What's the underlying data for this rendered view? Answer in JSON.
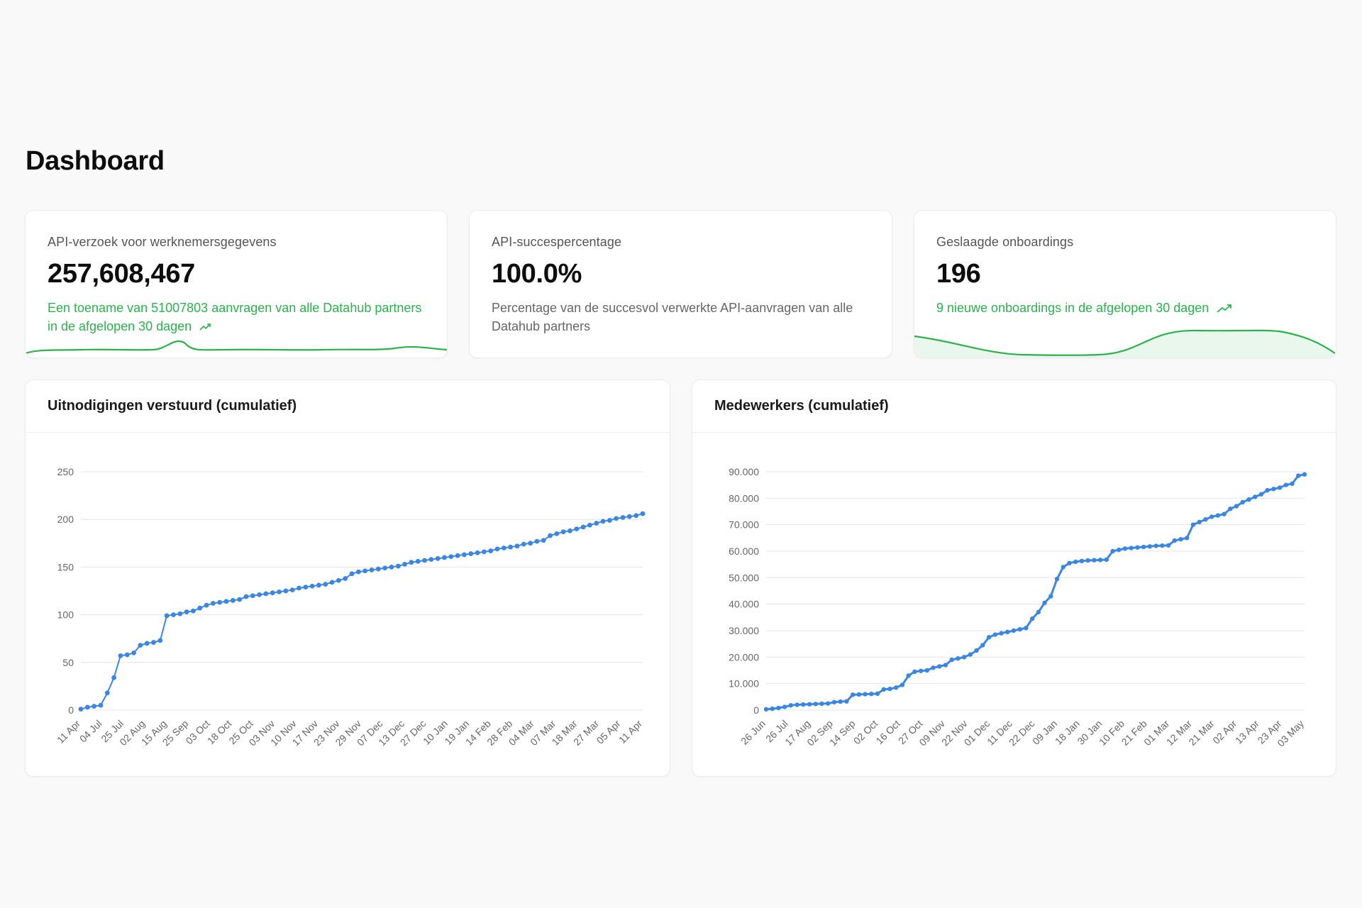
{
  "page": {
    "title": "Dashboard"
  },
  "stats": {
    "requests": {
      "title": "API-verzoek voor werknemersgegevens",
      "value": "257,608,467",
      "desc": "Een toename van 51007803 aanvragen van alle Datahub partners in de afgelopen 30 dagen",
      "trend_icon": "trending-up-icon"
    },
    "success": {
      "title": "API-succespercentage",
      "value": "100.0%",
      "desc": "Percentage van de succesvol verwerkte API-aanvragen van alle Datahub partners"
    },
    "onboardings": {
      "title": "Geslaagde onboardings",
      "value": "196",
      "desc": "9 nieuwe onboardings in de afgelopen 30 dagen",
      "trend_icon": "trending-up-icon"
    }
  },
  "colors": {
    "green": "#2bb24c",
    "line": "#3b86e0",
    "grid": "#e4e4e4"
  },
  "charts": {
    "invites": {
      "title": "Uitnodigingen verstuurd (cumulatief)"
    },
    "employees": {
      "title": "Medewerkers (cumulatief)"
    }
  },
  "chart_data": [
    {
      "type": "line",
      "title": "Uitnodigingen verstuurd (cumulatief)",
      "ylim": [
        0,
        250
      ],
      "yticks": [
        0,
        50,
        100,
        150,
        200,
        250
      ],
      "ytick_labels": [
        "0",
        "50",
        "100",
        "150",
        "200",
        "250"
      ],
      "xtick_labels": [
        "11 Apr",
        "04 Jul",
        "25 Jul",
        "02 Aug",
        "15 Aug",
        "25 Sep",
        "03 Oct",
        "18 Oct",
        "25 Oct",
        "03 Nov",
        "10 Nov",
        "17 Nov",
        "23 Nov",
        "29 Nov",
        "07 Dec",
        "13 Dec",
        "27 Dec",
        "10 Jan",
        "19 Jan",
        "14 Feb",
        "28 Feb",
        "04 Mar",
        "07 Mar",
        "18 Mar",
        "27 Mar",
        "05 Apr",
        "11 Apr"
      ],
      "values": [
        1,
        3,
        4,
        5,
        18,
        34,
        57,
        58,
        60,
        68,
        70,
        71,
        73,
        99,
        100,
        101,
        103,
        104,
        107,
        110,
        112,
        113,
        114,
        115,
        116,
        119,
        120,
        121,
        122,
        123,
        124,
        125,
        126,
        128,
        129,
        130,
        131,
        132,
        134,
        136,
        138,
        143,
        145,
        146,
        147,
        148,
        149,
        150,
        151,
        153,
        155,
        156,
        157,
        158,
        159,
        160,
        161,
        162,
        163,
        164,
        165,
        166,
        167,
        169,
        170,
        171,
        172,
        174,
        175,
        177,
        178,
        183,
        185,
        187,
        188,
        190,
        192,
        194,
        196,
        198,
        199,
        201,
        202,
        203,
        204,
        206
      ]
    },
    {
      "type": "line",
      "title": "Medewerkers (cumulatief)",
      "ylim": [
        0,
        90000
      ],
      "yticks": [
        0,
        10000,
        20000,
        30000,
        40000,
        50000,
        60000,
        70000,
        80000,
        90000
      ],
      "ytick_labels": [
        "0",
        "10.000",
        "20.000",
        "30.000",
        "40.000",
        "50.000",
        "60.000",
        "70.000",
        "80.000",
        "90.000"
      ],
      "xtick_labels": [
        "26 Jun",
        "26 Jul",
        "17 Aug",
        "02 Sep",
        "14 Sep",
        "02 Oct",
        "16 Oct",
        "27 Oct",
        "09 Nov",
        "22 Nov",
        "01 Dec",
        "11 Dec",
        "22 Dec",
        "09 Jan",
        "18 Jan",
        "30 Jan",
        "10 Feb",
        "21 Feb",
        "01 Mar",
        "12 Mar",
        "21 Mar",
        "02 Apr",
        "13 Apr",
        "23 Apr",
        "03 May"
      ],
      "values": [
        300,
        500,
        800,
        1200,
        1800,
        2000,
        2100,
        2200,
        2300,
        2400,
        2500,
        3000,
        3200,
        3300,
        5800,
        5900,
        6000,
        6100,
        6200,
        7800,
        8000,
        8500,
        9500,
        13000,
        14500,
        14800,
        15000,
        16000,
        16500,
        17000,
        19000,
        19500,
        20000,
        21000,
        22500,
        24500,
        27500,
        28500,
        29000,
        29500,
        30000,
        30500,
        31000,
        34500,
        37000,
        40500,
        43000,
        49500,
        54000,
        55500,
        56000,
        56300,
        56500,
        56600,
        56700,
        56800,
        60000,
        60500,
        61000,
        61200,
        61400,
        61600,
        61800,
        62000,
        62100,
        62200,
        64000,
        64500,
        65000,
        70000,
        71000,
        72000,
        73000,
        73500,
        74000,
        76000,
        77000,
        78500,
        79500,
        80500,
        81500,
        83000,
        83500,
        84000,
        85000,
        85500,
        88500,
        89000
      ]
    }
  ]
}
